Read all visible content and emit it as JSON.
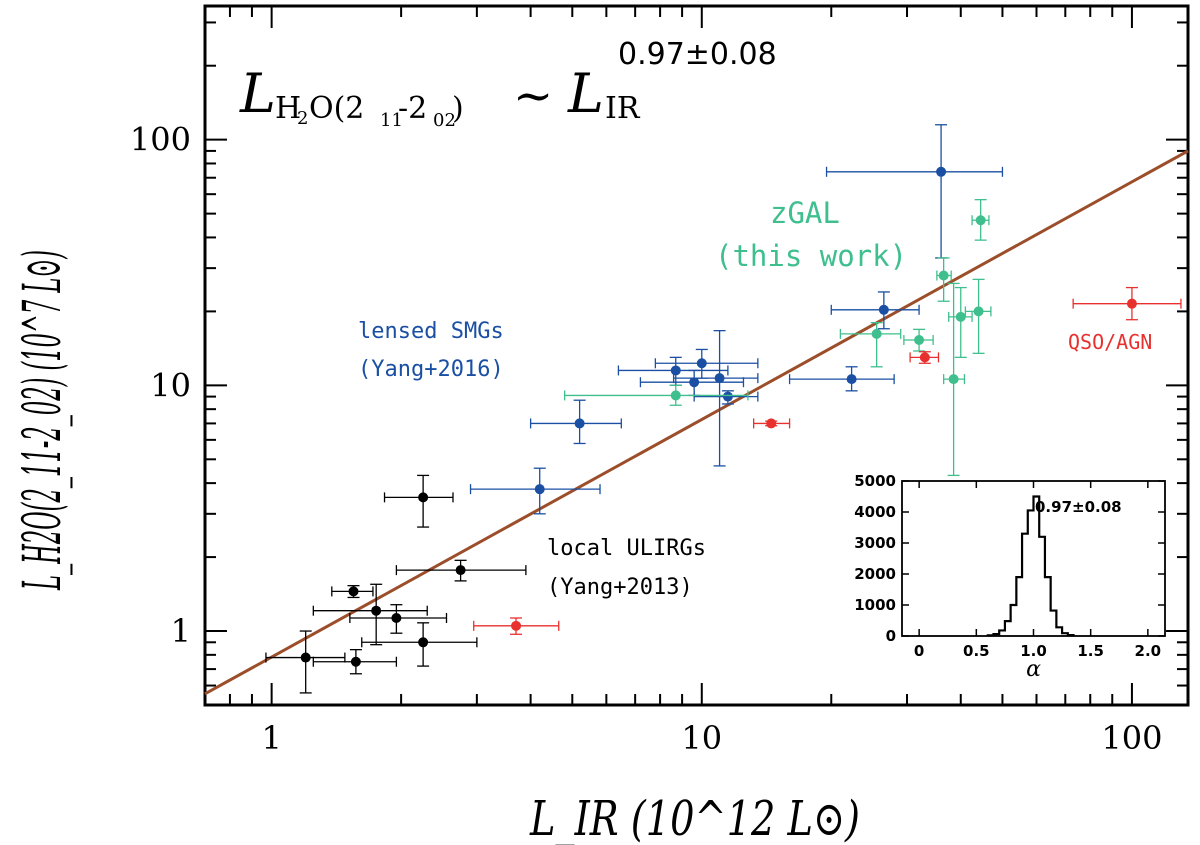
{
  "chart_data": {
    "type": "scatter",
    "title": "",
    "xlabel": "L_IR (10^12 L⊙)",
    "ylabel": "L_H2O(2_11-2_02) (10^7 L⊙)",
    "xscale": "log",
    "yscale": "log",
    "xlim": [
      0.7,
      135
    ],
    "ylim": [
      0.5,
      350
    ],
    "xticks": [
      1,
      10,
      100
    ],
    "xtick_labels": [
      "1",
      "10",
      "100"
    ],
    "yticks": [
      1,
      10,
      100
    ],
    "ytick_labels": [
      "1",
      "10",
      "100"
    ],
    "grid": false,
    "relation": {
      "lhs_symbol": "L",
      "lhs_sub": "H",
      "lhs_sub2": "2",
      "lhs_rest": "O(2",
      "lhs_sub3": "11",
      "lhs_dash": "-2",
      "lhs_sub4": "02",
      "lhs_close": ")",
      "tilde": "~",
      "rhs_symbol": "L",
      "rhs_sub": "IR",
      "exponent": "0.97±0.08"
    },
    "fit": {
      "slope": 0.97,
      "x": [
        0.7,
        135
      ],
      "y": [
        0.555,
        90
      ],
      "color": "#9b4e29"
    },
    "series": [
      {
        "name": "local ULIRGs",
        "label_line1": "local ULIRGs",
        "label_line2": "(Yang+2013)",
        "color": "#000000",
        "points": [
          {
            "x": 1.2,
            "y": 0.78,
            "xerr": [
              0.97,
              1.48
            ],
            "yerr": [
              0.56,
              1.0
            ]
          },
          {
            "x": 1.57,
            "y": 0.75,
            "xerr": [
              1.25,
              1.95
            ],
            "yerr": [
              0.67,
              0.84
            ]
          },
          {
            "x": 1.55,
            "y": 1.45,
            "xerr": [
              1.38,
              1.72
            ],
            "yerr": [
              1.37,
              1.53
            ]
          },
          {
            "x": 1.75,
            "y": 1.21,
            "xerr": [
              1.25,
              2.3
            ],
            "yerr": [
              0.88,
              1.55
            ]
          },
          {
            "x": 1.95,
            "y": 1.13,
            "xerr": [
              1.52,
              2.55
            ],
            "yerr": [
              0.98,
              1.28
            ]
          },
          {
            "x": 2.25,
            "y": 0.9,
            "xerr": [
              1.62,
              3.0
            ],
            "yerr": [
              0.72,
              1.08
            ]
          },
          {
            "x": 2.25,
            "y": 3.5,
            "xerr": [
              1.83,
              2.64
            ],
            "yerr": [
              2.65,
              4.3
            ]
          },
          {
            "x": 2.75,
            "y": 1.77,
            "xerr": [
              1.95,
              3.9
            ],
            "yerr": [
              1.6,
              1.94
            ]
          }
        ]
      },
      {
        "name": "lensed SMGs",
        "label_line1": "lensed SMGs",
        "label_line2": "(Yang+2016)",
        "color": "#1a4fa3",
        "points": [
          {
            "x": 4.2,
            "y": 3.78,
            "xerr": [
              2.9,
              5.8
            ],
            "yerr": [
              3.0,
              4.6
            ]
          },
          {
            "x": 5.2,
            "y": 7.0,
            "xerr": [
              4.0,
              6.5
            ],
            "yerr": [
              5.8,
              8.7
            ]
          },
          {
            "x": 8.7,
            "y": 11.5,
            "xerr": [
              6.4,
              11.5
            ],
            "yerr": [
              10.0,
              13.0
            ]
          },
          {
            "x": 9.6,
            "y": 10.3,
            "xerr": [
              7.2,
              12.5
            ],
            "yerr": [
              9.1,
              11.5
            ]
          },
          {
            "x": 10.0,
            "y": 12.3,
            "xerr": [
              7.8,
              13.5
            ],
            "yerr": [
              10.7,
              14.0
            ]
          },
          {
            "x": 11.0,
            "y": 10.7,
            "xerr": [
              8.6,
              13.5
            ],
            "yerr": [
              4.7,
              16.7
            ]
          },
          {
            "x": 11.5,
            "y": 9.0,
            "xerr": [
              9.6,
              13.5
            ],
            "yerr": [
              8.4,
              9.5
            ]
          },
          {
            "x": 22.3,
            "y": 10.6,
            "xerr": [
              16.0,
              28.0
            ],
            "yerr": [
              9.5,
              11.9
            ]
          },
          {
            "x": 26.5,
            "y": 20.3,
            "xerr": [
              20.0,
              32.0
            ],
            "yerr": [
              17.0,
              24.0
            ]
          },
          {
            "x": 36.0,
            "y": 74.0,
            "xerr": [
              19.5,
              50.0
            ],
            "yerr": [
              33.0,
              115.0
            ]
          }
        ]
      },
      {
        "name": "zGAL",
        "label_line1": "zGAL",
        "label_line2": "(this work)",
        "color": "#3fbf8e",
        "points": [
          {
            "x": 8.7,
            "y": 9.1,
            "xerr": [
              4.8,
              12.8
            ],
            "yerr": [
              8.3,
              10.0
            ]
          },
          {
            "x": 25.5,
            "y": 16.2,
            "xerr": [
              21.0,
              29.0
            ],
            "yerr": [
              11.9,
              18.0
            ]
          },
          {
            "x": 32.0,
            "y": 15.3,
            "xerr": [
              29.5,
              34.5
            ],
            "yerr": [
              13.8,
              16.9
            ]
          },
          {
            "x": 36.5,
            "y": 28.0,
            "xerr": [
              35.2,
              38.0
            ],
            "yerr": [
              22.0,
              33.0
            ]
          },
          {
            "x": 38.5,
            "y": 10.6,
            "xerr": [
              36.5,
              40.8
            ],
            "yerr": [
              4.3,
              26.0
            ]
          },
          {
            "x": 40.0,
            "y": 19.0,
            "xerr": [
              37.5,
              42.5
            ],
            "yerr": [
              13.0,
              25.0
            ]
          },
          {
            "x": 44.0,
            "y": 20.0,
            "xerr": [
              41.0,
              47.0
            ],
            "yerr": [
              13.5,
              27.0
            ]
          },
          {
            "x": 44.5,
            "y": 47.0,
            "xerr": [
              42.5,
              46.5
            ],
            "yerr": [
              39.0,
              57.0
            ]
          }
        ]
      },
      {
        "name": "QSO/AGN",
        "label_line1": "QSO/AGN",
        "label_line2": "",
        "color": "#e8312f",
        "points": [
          {
            "x": 3.7,
            "y": 1.05,
            "xerr": [
              2.95,
              4.65
            ],
            "yerr": [
              0.97,
              1.13
            ]
          },
          {
            "x": 14.5,
            "y": 7.0,
            "xerr": [
              13.2,
              16.0
            ],
            "yerr": [
              6.85,
              7.15
            ]
          },
          {
            "x": 33.0,
            "y": 13.0,
            "xerr": [
              30.5,
              35.5
            ],
            "yerr": [
              12.3,
              13.7
            ]
          },
          {
            "x": 100.0,
            "y": 21.5,
            "xerr": [
              73.0,
              130.0
            ],
            "yerr": [
              18.5,
              25.0
            ]
          }
        ]
      }
    ],
    "inset": {
      "type": "histogram",
      "xlabel": "α",
      "annotation": "0.97±0.08",
      "xlim": [
        -0.15,
        2.15
      ],
      "ylim": [
        0,
        5000
      ],
      "xticks": [
        0,
        0.5,
        1.0,
        1.5,
        2.0
      ],
      "xtick_labels": [
        "0",
        "0.5",
        "1.0",
        "1.5",
        "2.0"
      ],
      "yticks": [
        0,
        1000,
        2000,
        3000,
        4000,
        5000
      ],
      "ytick_labels": [
        "0",
        "1000",
        "2000",
        "3000",
        "4000",
        "5000"
      ],
      "bin_width": 0.05,
      "bins_start": 0.6,
      "counts": [
        20,
        60,
        180,
        480,
        1000,
        1900,
        3300,
        4050,
        4500,
        3200,
        1900,
        820,
        280,
        90,
        30
      ]
    }
  }
}
